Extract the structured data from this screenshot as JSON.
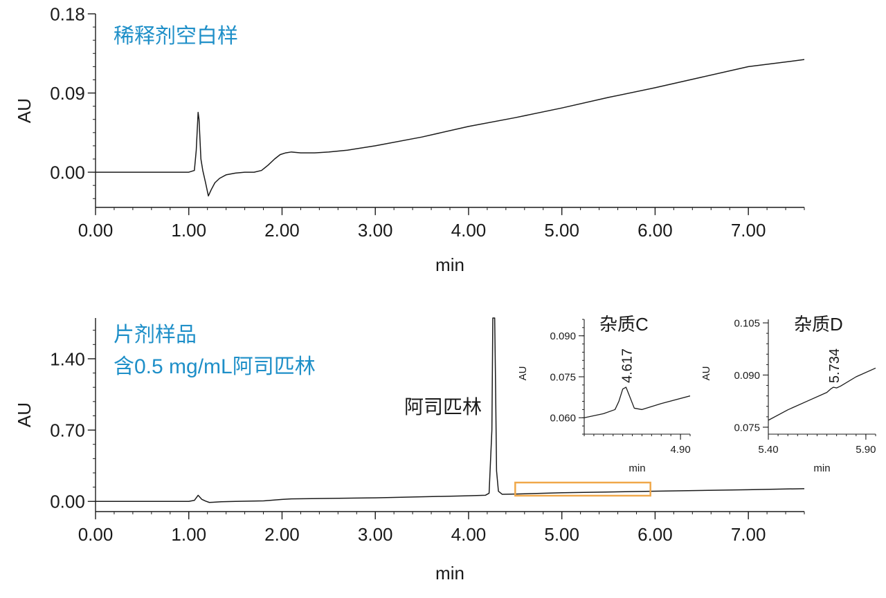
{
  "colors": {
    "trace": "#1a1a1a",
    "axis": "#1a1a1a",
    "sample_label": "#1e8fc8",
    "zoom_box": "#f0a84a"
  },
  "chart_data": [
    {
      "type": "line",
      "sample_label": "稀释剂空白样",
      "xlabel": "min",
      "ylabel": "AU",
      "xlim": [
        0,
        7.6
      ],
      "ylim": [
        -0.04,
        0.18
      ],
      "x_ticks": [
        "0.00",
        "1.00",
        "2.00",
        "3.00",
        "4.00",
        "5.00",
        "6.00",
        "7.00"
      ],
      "y_ticks": [
        "0.18",
        "0.09",
        "0.00"
      ],
      "series": [
        {
          "x": [
            0.0,
            0.5,
            1.0,
            1.06,
            1.08,
            1.1,
            1.11,
            1.13,
            1.15,
            1.18,
            1.21,
            1.24,
            1.28,
            1.33,
            1.4,
            1.5,
            1.6,
            1.7,
            1.78,
            1.85,
            1.92,
            1.98,
            2.04,
            2.1,
            2.2,
            2.35,
            2.5,
            2.7,
            3.0,
            3.5,
            4.0,
            4.5,
            5.0,
            5.5,
            6.0,
            6.5,
            7.0,
            7.6
          ],
          "y": [
            0.0,
            0.0,
            0.0,
            0.002,
            0.025,
            0.068,
            0.06,
            0.015,
            0.002,
            -0.012,
            -0.027,
            -0.02,
            -0.012,
            -0.007,
            -0.003,
            -0.001,
            0.0,
            0.0,
            0.002,
            0.008,
            0.015,
            0.02,
            0.022,
            0.023,
            0.022,
            0.022,
            0.023,
            0.025,
            0.03,
            0.04,
            0.052,
            0.062,
            0.073,
            0.085,
            0.096,
            0.108,
            0.12,
            0.128
          ]
        }
      ]
    },
    {
      "type": "line",
      "sample_label": [
        "片剂样品",
        "含0.5 mg/mL阿司匹林"
      ],
      "peak_label": "阿司匹林",
      "xlabel": "min",
      "ylabel": "AU",
      "xlim": [
        0,
        7.6
      ],
      "ylim": [
        -0.1,
        1.8
      ],
      "x_ticks": [
        "0.00",
        "1.00",
        "2.00",
        "3.00",
        "4.00",
        "5.00",
        "6.00",
        "7.00"
      ],
      "y_ticks": [
        "1.40",
        "0.70",
        "0.00"
      ],
      "zoom_range_x": [
        4.5,
        5.95
      ],
      "series": [
        {
          "x": [
            0.0,
            1.0,
            1.06,
            1.1,
            1.14,
            1.18,
            1.22,
            1.26,
            1.35,
            1.5,
            1.8,
            2.0,
            2.1,
            3.0,
            4.0,
            4.18,
            4.22,
            4.25,
            4.26,
            4.27,
            4.28,
            4.29,
            4.3,
            4.32,
            4.36,
            4.5,
            5.0,
            6.0,
            7.0,
            7.6
          ],
          "y": [
            0.0,
            0.0,
            0.01,
            0.06,
            0.02,
            0.003,
            -0.01,
            -0.008,
            -0.003,
            0.0,
            0.005,
            0.02,
            0.025,
            0.035,
            0.055,
            0.06,
            0.08,
            0.7,
            1.8,
            1.8,
            1.8,
            1.1,
            0.3,
            0.1,
            0.07,
            0.072,
            0.085,
            0.1,
            0.115,
            0.125
          ]
        }
      ]
    },
    {
      "type": "line",
      "title": "杂质C",
      "xlabel": "min",
      "ylabel": "AU",
      "xlim": [
        4.4,
        4.95
      ],
      "ylim": [
        0.054,
        0.096
      ],
      "x_ticks": [
        "4.90"
      ],
      "y_ticks": [
        "0.090",
        "0.075",
        "0.060"
      ],
      "peak_label": "4.617",
      "series": [
        {
          "x": [
            4.4,
            4.5,
            4.56,
            4.58,
            4.6,
            4.617,
            4.635,
            4.66,
            4.7,
            4.8,
            4.95
          ],
          "y": [
            0.06,
            0.0615,
            0.063,
            0.066,
            0.0705,
            0.0712,
            0.068,
            0.0635,
            0.063,
            0.0652,
            0.068
          ]
        }
      ]
    },
    {
      "type": "line",
      "title": "杂质D",
      "xlabel": "min",
      "ylabel": "AU",
      "xlim": [
        5.4,
        5.95
      ],
      "ylim": [
        0.073,
        0.106
      ],
      "x_ticks": [
        "5.40",
        "5.90"
      ],
      "y_ticks": [
        "0.105",
        "0.090",
        "0.075"
      ],
      "peak_label": "5.734",
      "series": [
        {
          "x": [
            5.4,
            5.5,
            5.6,
            5.7,
            5.72,
            5.734,
            5.75,
            5.77,
            5.85,
            5.95
          ],
          "y": [
            0.077,
            0.08,
            0.0825,
            0.085,
            0.086,
            0.0865,
            0.0863,
            0.0868,
            0.0895,
            0.092
          ]
        }
      ]
    }
  ]
}
